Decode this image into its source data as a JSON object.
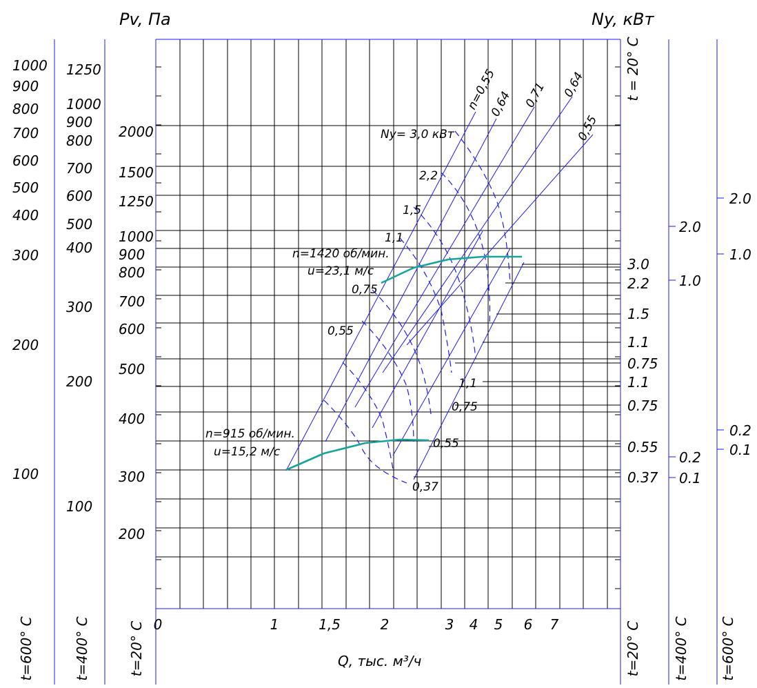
{
  "colors": {
    "axis": "#1a1aff",
    "grid": "#000000",
    "curve": "#17a39b",
    "text": "#000000"
  },
  "chart_data": {
    "type": "line",
    "titles": {
      "left": "Pv, Па",
      "right": "Ny, кВт",
      "x": "Q, тыс. м³/ч"
    },
    "x_axis": {
      "scale": "log",
      "ticks": [
        "0",
        "1",
        "1,5",
        "2",
        "3",
        "4",
        "5",
        "6",
        "7"
      ]
    },
    "pressure_scales": [
      {
        "temperature": "t=20° С",
        "ticks": [
          "200",
          "300",
          "400",
          "500",
          "600",
          "700",
          "800",
          "900",
          "1000",
          "1250",
          "1500",
          "2000"
        ]
      },
      {
        "temperature": "t=400° С",
        "ticks": [
          "100",
          "200",
          "300",
          "400",
          "500",
          "600",
          "700",
          "800",
          "900",
          "1000",
          "1250"
        ]
      },
      {
        "temperature": "t=600° С",
        "ticks": [
          "100",
          "200",
          "300",
          "400",
          "500",
          "600",
          "700",
          "800",
          "900",
          "1000"
        ]
      }
    ],
    "power_scales": [
      {
        "temperature": "t = 20° С",
        "ticks": [
          "3.0",
          "2.2",
          "1.5",
          "1.1",
          "0.75",
          "1.1",
          "0.75",
          "0.55",
          "0.37"
        ]
      },
      {
        "temperature": "t=400° С",
        "ticks": [
          "2.0",
          "1.0",
          "0.2",
          "0.1"
        ]
      },
      {
        "temperature": "t=600° С",
        "ticks": [
          "2.0",
          "1.0",
          "0.2",
          "0.1"
        ]
      },
      {
        "temperature": "t=20° С",
        "ticks": []
      }
    ],
    "efficiency_labels": [
      "n=0,55",
      "0,64",
      "0,71",
      "0,64",
      "0,55"
    ],
    "series": [
      {
        "name": "n=1420 об/мин. u=23,1 м/с",
        "label_line1": "n=1420 об/мин.",
        "label_line2": "u=23,1 м/с",
        "x": [
          2.0,
          2.2,
          2.6,
          3.0,
          3.6,
          4.2,
          5.0,
          5.6
        ],
        "y": [
          735,
          765,
          800,
          825,
          842,
          850,
          850,
          850
        ],
        "power_labels": [
          "Ny= 3,0 кВт",
          "2,2",
          "1,5",
          "1,1",
          "0,75",
          "0,55"
        ]
      },
      {
        "name": "n=915 об/мин. u=15,2 м/с",
        "label_line1": "n=915 об/мин.",
        "label_line2": "u=15,2 м/с",
        "x": [
          1.1,
          1.4,
          1.7,
          2.0,
          2.3,
          2.7
        ],
        "y": [
          300,
          325,
          340,
          348,
          352,
          350
        ],
        "power_labels": [
          "1,1",
          "0,75",
          "0,55",
          "0,37"
        ]
      }
    ]
  }
}
